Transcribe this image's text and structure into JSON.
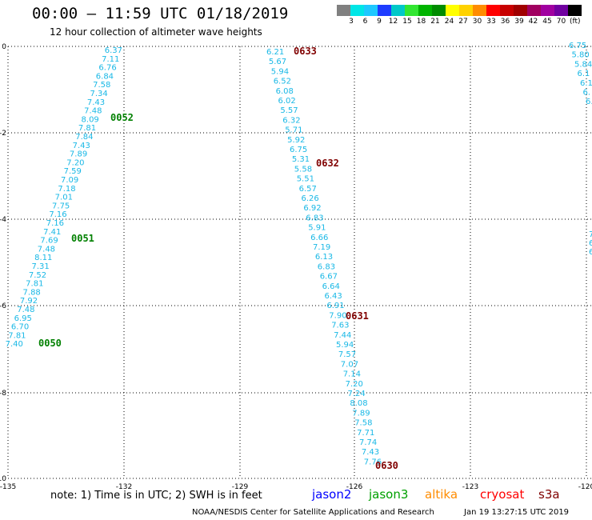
{
  "title": "00:00 – 11:59 UTC 01/18/2019",
  "subtitle": "12 hour collection of altimeter wave heights",
  "scale": {
    "colors": [
      "#808080",
      "#00e6e6",
      "#1ec8ff",
      "#1e3cff",
      "#00c8c8",
      "#32e632",
      "#00b400",
      "#008c00",
      "#ffff00",
      "#ffd200",
      "#ff8c00",
      "#ff0000",
      "#c80000",
      "#a00000",
      "#a00060",
      "#a000a0",
      "#7000a0",
      "#000000"
    ],
    "labels": [
      "3",
      "6",
      "9",
      "12",
      "15",
      "18",
      "21",
      "24",
      "27",
      "30",
      "33",
      "36",
      "39",
      "42",
      "45",
      "70"
    ],
    "unit": "(ft)"
  },
  "axes": {
    "x_ticks": [
      "-135",
      "-132",
      "-129",
      "-126",
      "-123",
      "-120"
    ],
    "y_ticks": [
      "0",
      "-2",
      "-4",
      "-6",
      "-8",
      "-10"
    ]
  },
  "passes": [
    {
      "id": "0052",
      "color": "#008000"
    },
    {
      "id": "0051",
      "color": "#008000"
    },
    {
      "id": "0050",
      "color": "#008000"
    },
    {
      "id": "0633",
      "color": "#800000"
    },
    {
      "id": "0632",
      "color": "#800000"
    },
    {
      "id": "0631",
      "color": "#800000"
    },
    {
      "id": "0630",
      "color": "#800000"
    }
  ],
  "track1": [
    "6.37",
    "7.11",
    "6.76",
    "6.84",
    "7.58",
    "7.34",
    "7.43",
    "7.48",
    "8.09",
    "7.81",
    "7.84",
    "7.43",
    "7.89",
    "7.20",
    "7.59",
    "7.09",
    "7.18",
    "7.01",
    "7.75",
    "7.16",
    "7.16",
    "7.41",
    "7.69",
    "7.48",
    "8.11",
    "7.31",
    "7.52",
    "7.81",
    "7.88",
    "7.92",
    "7.48",
    "6.95",
    "6.70",
    "7.81",
    "7.40"
  ],
  "track2": [
    "6.21",
    "5.67",
    "5.94",
    "6.52",
    "6.08",
    "6.02",
    "5.57",
    "6.32",
    "5.71",
    "5.92",
    "6.75",
    "5.31",
    "5.58",
    "5.51",
    "6.57",
    "6.26",
    "6.92",
    "6.83",
    "5.91",
    "6.66",
    "7.19",
    "6.13",
    "6.83",
    "6.67",
    "6.64",
    "6.43",
    "6.91",
    "7.90",
    "7.63",
    "7.44",
    "5.94",
    "7.57",
    "7.07",
    "7.14",
    "7.20",
    "7.24",
    "8.08",
    "7.89",
    "7.58",
    "7.71",
    "7.74",
    "7.43",
    "7.76"
  ],
  "track3": [
    "6.75",
    "5.80",
    "5.84",
    "6.1",
    "6.1",
    "6.",
    "6."
  ],
  "track3_partial": [
    "7.",
    "6.",
    "6."
  ],
  "note": "note:  1) Time is in UTC;  2) SWH is in feet",
  "satellites": [
    {
      "name": "jason2",
      "color": "#0000ff"
    },
    {
      "name": "jason3",
      "color": "#00a000"
    },
    {
      "name": "altika",
      "color": "#ff8c00"
    },
    {
      "name": "cryosat",
      "color": "#ff0000"
    },
    {
      "name": "s3a",
      "color": "#800000"
    }
  ],
  "credit": "NOAA/NESDIS Center for Satellite Applications and Research",
  "timestamp": "Jan 19 13:27:15 UTC 2019"
}
